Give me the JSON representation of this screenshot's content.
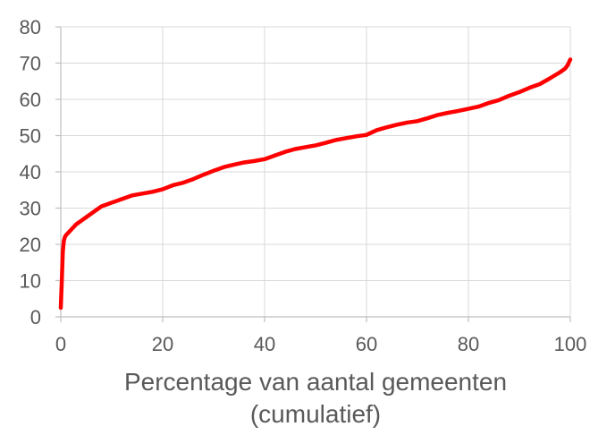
{
  "chart_data": {
    "type": "line",
    "xlabel_lines": [
      "Percentage van aantal gemeenten",
      "(cumulatief)"
    ],
    "ylabel": "",
    "xlim": [
      0,
      100
    ],
    "ylim": [
      0,
      80
    ],
    "xticks": [
      0,
      20,
      40,
      60,
      80,
      100
    ],
    "yticks": [
      0,
      10,
      20,
      30,
      40,
      50,
      60,
      70,
      80
    ],
    "grid": true,
    "line_color": "#ff0000",
    "series": [
      {
        "x": [
          0,
          0.2,
          0.4,
          0.6,
          0.8,
          1,
          2,
          3,
          4,
          5,
          6,
          7,
          8,
          9,
          10,
          12,
          14,
          16,
          18,
          20,
          22,
          24,
          26,
          28,
          30,
          32,
          34,
          36,
          38,
          40,
          42,
          44,
          46,
          48,
          50,
          52,
          54,
          56,
          58,
          60,
          62,
          64,
          66,
          68,
          70,
          72,
          74,
          76,
          78,
          80,
          82,
          84,
          86,
          88,
          90,
          92,
          94,
          96,
          98,
          99,
          99.5,
          100
        ],
        "y": [
          2.5,
          10,
          18,
          21,
          22,
          22.5,
          24,
          25.5,
          26.5,
          27.5,
          28.5,
          29.5,
          30.5,
          31,
          31.5,
          32.5,
          33.5,
          34,
          34.5,
          35.2,
          36.3,
          37,
          38,
          39.2,
          40.3,
          41.3,
          42,
          42.6,
          43,
          43.5,
          44.5,
          45.5,
          46.3,
          46.8,
          47.3,
          48,
          48.8,
          49.3,
          49.8,
          50.2,
          51.5,
          52.3,
          53,
          53.6,
          54,
          54.8,
          55.7,
          56.3,
          56.8,
          57.4,
          58,
          59,
          59.8,
          61,
          62,
          63.2,
          64.2,
          65.8,
          67.5,
          68.5,
          69.5,
          71
        ]
      }
    ]
  }
}
